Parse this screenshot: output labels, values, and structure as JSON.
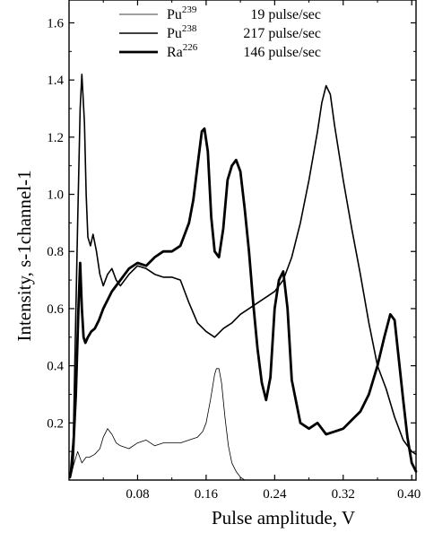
{
  "chart_data": {
    "type": "line",
    "title": "",
    "xlabel": "Pulse amplitude, V",
    "ylabel": "Intensity, s-1channel-1",
    "xlim": [
      0.0,
      0.405
    ],
    "ylim": [
      0.0,
      1.68
    ],
    "xticks": [
      0.08,
      0.16,
      0.24,
      0.32,
      0.4
    ],
    "xtick_labels": [
      "0.08",
      "0.16",
      "0.24",
      "0.32",
      "0.40"
    ],
    "yticks": [
      0.2,
      0.4,
      0.6,
      0.8,
      1.0,
      1.2,
      1.4,
      1.6
    ],
    "ytick_labels": [
      "0.2",
      "0.4",
      "0.6",
      "0.8",
      "1.0",
      "1.2",
      "1.4",
      "1.6"
    ],
    "grid": false,
    "legend_position": "top-center",
    "series": [
      {
        "name": "Pu239",
        "name_base": "Pu",
        "name_sup": "239",
        "rate": "19 pulse/sec",
        "stroke": 0.8,
        "x": [
          0.002,
          0.005,
          0.01,
          0.015,
          0.02,
          0.024,
          0.03,
          0.036,
          0.04,
          0.045,
          0.05,
          0.055,
          0.06,
          0.07,
          0.08,
          0.09,
          0.1,
          0.11,
          0.12,
          0.13,
          0.14,
          0.15,
          0.156,
          0.16,
          0.165,
          0.17,
          0.172,
          0.175,
          0.178,
          0.182,
          0.186,
          0.19,
          0.195,
          0.2,
          0.205,
          0.21
        ],
        "y": [
          0.02,
          0.05,
          0.1,
          0.06,
          0.08,
          0.08,
          0.09,
          0.11,
          0.15,
          0.18,
          0.16,
          0.13,
          0.12,
          0.11,
          0.13,
          0.14,
          0.12,
          0.13,
          0.13,
          0.13,
          0.14,
          0.15,
          0.17,
          0.2,
          0.28,
          0.37,
          0.39,
          0.39,
          0.34,
          0.22,
          0.12,
          0.06,
          0.03,
          0.01,
          0.0,
          0.0
        ]
      },
      {
        "name": "Pu238",
        "name_base": "Pu",
        "name_sup": "238",
        "rate": "217 pulse/sec",
        "stroke": 1.6,
        "x": [
          0.001,
          0.005,
          0.01,
          0.013,
          0.015,
          0.018,
          0.02,
          0.022,
          0.025,
          0.028,
          0.032,
          0.036,
          0.04,
          0.045,
          0.05,
          0.055,
          0.06,
          0.07,
          0.08,
          0.09,
          0.1,
          0.11,
          0.12,
          0.13,
          0.14,
          0.15,
          0.16,
          0.17,
          0.18,
          0.19,
          0.2,
          0.21,
          0.22,
          0.23,
          0.24,
          0.25,
          0.26,
          0.27,
          0.28,
          0.29,
          0.295,
          0.3,
          0.305,
          0.31,
          0.32,
          0.33,
          0.34,
          0.35,
          0.36,
          0.37,
          0.38,
          0.39,
          0.4,
          0.405
        ],
        "y": [
          0.01,
          0.15,
          0.9,
          1.3,
          1.42,
          1.25,
          1.0,
          0.85,
          0.82,
          0.86,
          0.8,
          0.72,
          0.68,
          0.72,
          0.74,
          0.7,
          0.68,
          0.72,
          0.75,
          0.74,
          0.72,
          0.71,
          0.71,
          0.7,
          0.62,
          0.55,
          0.52,
          0.5,
          0.53,
          0.55,
          0.58,
          0.6,
          0.62,
          0.64,
          0.66,
          0.7,
          0.78,
          0.9,
          1.05,
          1.22,
          1.32,
          1.38,
          1.35,
          1.24,
          1.05,
          0.88,
          0.72,
          0.55,
          0.4,
          0.32,
          0.22,
          0.14,
          0.1,
          0.09
        ]
      },
      {
        "name": "Ra226",
        "name_base": "Ra",
        "name_sup": "226",
        "rate": "146 pulse/sec",
        "stroke": 2.8,
        "x": [
          0.001,
          0.004,
          0.008,
          0.011,
          0.013,
          0.015,
          0.017,
          0.019,
          0.022,
          0.026,
          0.03,
          0.035,
          0.04,
          0.05,
          0.06,
          0.07,
          0.08,
          0.09,
          0.1,
          0.11,
          0.12,
          0.13,
          0.14,
          0.145,
          0.15,
          0.155,
          0.158,
          0.162,
          0.166,
          0.17,
          0.175,
          0.18,
          0.185,
          0.19,
          0.195,
          0.2,
          0.205,
          0.21,
          0.215,
          0.22,
          0.225,
          0.23,
          0.235,
          0.24,
          0.245,
          0.25,
          0.255,
          0.26,
          0.27,
          0.28,
          0.29,
          0.3,
          0.31,
          0.32,
          0.33,
          0.34,
          0.35,
          0.36,
          0.368,
          0.375,
          0.38,
          0.385,
          0.39,
          0.395,
          0.4,
          0.405
        ],
        "y": [
          0.01,
          0.05,
          0.3,
          0.6,
          0.76,
          0.6,
          0.5,
          0.48,
          0.5,
          0.52,
          0.53,
          0.56,
          0.6,
          0.66,
          0.7,
          0.74,
          0.76,
          0.75,
          0.78,
          0.8,
          0.8,
          0.82,
          0.9,
          0.98,
          1.1,
          1.22,
          1.23,
          1.15,
          0.92,
          0.8,
          0.78,
          0.88,
          1.05,
          1.1,
          1.12,
          1.08,
          0.95,
          0.8,
          0.62,
          0.46,
          0.34,
          0.28,
          0.36,
          0.6,
          0.7,
          0.73,
          0.6,
          0.35,
          0.2,
          0.18,
          0.2,
          0.16,
          0.17,
          0.18,
          0.21,
          0.24,
          0.3,
          0.4,
          0.5,
          0.58,
          0.56,
          0.42,
          0.28,
          0.15,
          0.06,
          0.03
        ]
      }
    ]
  }
}
